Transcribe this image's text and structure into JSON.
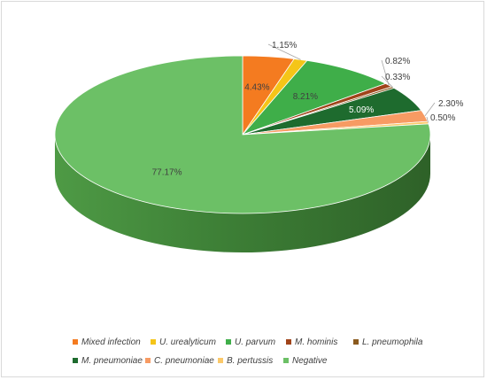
{
  "chart_data": {
    "type": "pie",
    "title": "",
    "legend_position": "bottom",
    "series": [
      {
        "name": "Mixed infection",
        "value": 4.43,
        "label": "4.43%",
        "color": "#f47b20"
      },
      {
        "name": "U. urealyticum",
        "value": 1.15,
        "label": "1.15%",
        "color": "#f5c518"
      },
      {
        "name": "U. parvum",
        "value": 8.21,
        "label": "8.21%",
        "color": "#3fae49"
      },
      {
        "name": "M. hominis",
        "value": 0.82,
        "label": "0.82%",
        "color": "#a0441a"
      },
      {
        "name": "L. pneumophila",
        "value": 0.33,
        "label": "0.33%",
        "color": "#8a5a1e"
      },
      {
        "name": "M. pneumoniae",
        "value": 5.09,
        "label": "5.09%",
        "color": "#1e6b2e"
      },
      {
        "name": "C. pneumoniae",
        "value": 2.3,
        "label": "2.30%",
        "color": "#f79b63"
      },
      {
        "name": "B. pertussis",
        "value": 0.5,
        "label": "0.50%",
        "color": "#fbc96a"
      },
      {
        "name": "Negative",
        "value": 77.17,
        "label": "77.17%",
        "color": "#6cc066"
      }
    ]
  }
}
